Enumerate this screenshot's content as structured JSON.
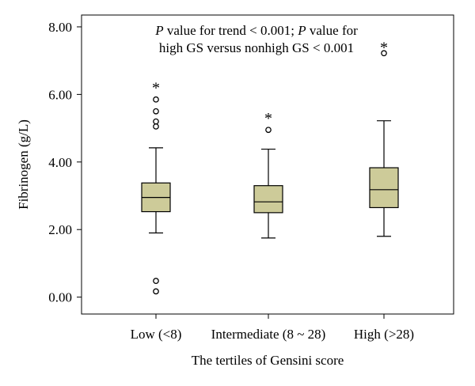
{
  "chart_data": {
    "type": "box",
    "xlabel": "The tertiles of Gensini score",
    "ylabel": "Fibrinogen (g/L)",
    "annotation_lines": [
      [
        {
          "text": "P",
          "italic": true
        },
        {
          "text": " value for trend < 0.001; ",
          "italic": false
        },
        {
          "text": "P",
          "italic": true
        },
        {
          "text": " value for",
          "italic": false
        }
      ],
      [
        {
          "text": "high GS versus nonhigh GS < 0.001",
          "italic": false
        }
      ]
    ],
    "ylim": [
      -0.5,
      8.35
    ],
    "yticks": [
      0,
      2,
      4,
      6,
      8
    ],
    "ytick_labels": [
      "0.00",
      "2.00",
      "4.00",
      "6.00",
      "8.00"
    ],
    "categories": [
      "Low (<8)",
      "Intermediate (8 ~ 28)",
      "High (>28)"
    ],
    "boxes": [
      {
        "category": "Low (<8)",
        "whisker_low": 1.9,
        "q1": 2.53,
        "median": 2.95,
        "q3": 3.38,
        "whisker_high": 4.42,
        "outliers": [
          5.85,
          5.5,
          5.2,
          5.05,
          0.48,
          0.17
        ],
        "extremes": [
          6.3
        ]
      },
      {
        "category": "Intermediate (8 ~ 28)",
        "whisker_low": 1.75,
        "q1": 2.5,
        "median": 2.82,
        "q3": 3.3,
        "whisker_high": 4.38,
        "outliers": [
          4.95
        ],
        "extremes": [
          5.4
        ]
      },
      {
        "category": "High (>28)",
        "whisker_low": 1.8,
        "q1": 2.65,
        "median": 3.18,
        "q3": 3.83,
        "whisker_high": 5.22,
        "outliers": [
          7.22
        ],
        "extremes": [
          7.5
        ]
      }
    ],
    "box_fill": "#cdcb99",
    "line_color": "#000000",
    "grid": false,
    "legend": "none"
  }
}
